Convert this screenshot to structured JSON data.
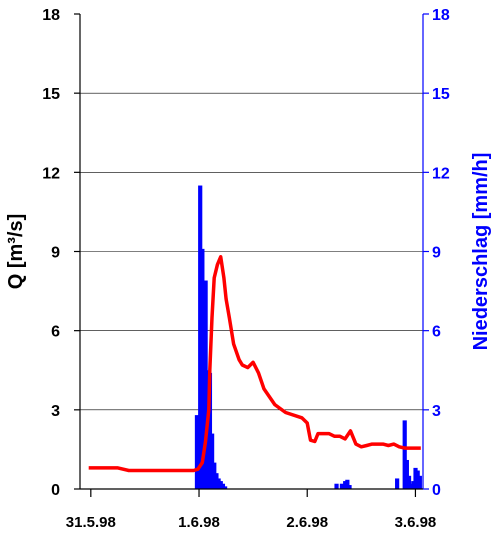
{
  "chart_data": {
    "type": "bar+line",
    "ylabel_left": "Q [m³/s]",
    "ylabel_right": "Niederschlag [mm/h]",
    "ylim_left": [
      0,
      18
    ],
    "ylim_right": [
      0,
      18
    ],
    "y_ticks": [
      "0",
      "3",
      "6",
      "9",
      "12",
      "15",
      "18"
    ],
    "x_ticks": [
      "31.5.98",
      "1.6.98",
      "2.6.98",
      "3.6.98"
    ],
    "xlim_days": [
      -0.1,
      3.07
    ],
    "grid": "horizontal",
    "colors": {
      "discharge": "#ff0000",
      "precipitation": "#0000ff",
      "axis_left": "#000000",
      "axis_right": "#0000ff"
    },
    "discharge": {
      "x": [
        -0.02,
        0.25,
        0.35,
        0.6,
        0.95,
        0.99,
        1.03,
        1.06,
        1.09,
        1.1,
        1.12,
        1.14,
        1.17,
        1.2,
        1.23,
        1.25,
        1.28,
        1.32,
        1.37,
        1.4,
        1.45,
        1.5,
        1.55,
        1.6,
        1.7,
        1.8,
        1.95,
        2.0,
        2.03,
        2.07,
        2.1,
        2.15,
        2.2,
        2.25,
        2.3,
        2.35,
        2.4,
        2.45,
        2.5,
        2.55,
        2.6,
        2.65,
        2.7,
        2.75,
        2.8,
        2.85,
        2.9,
        2.95,
        3.0,
        3.05
      ],
      "y": [
        0.8,
        0.8,
        0.7,
        0.7,
        0.7,
        0.75,
        1.0,
        1.8,
        3.0,
        4.5,
        6.5,
        8.0,
        8.5,
        8.8,
        8.0,
        7.2,
        6.5,
        5.5,
        4.9,
        4.7,
        4.6,
        4.8,
        4.4,
        3.8,
        3.2,
        2.9,
        2.7,
        2.5,
        1.85,
        1.8,
        2.1,
        2.1,
        2.1,
        2.0,
        2.0,
        1.9,
        2.2,
        1.7,
        1.6,
        1.65,
        1.7,
        1.7,
        1.7,
        1.65,
        1.7,
        1.6,
        1.55,
        1.55,
        1.55,
        1.55
      ]
    },
    "precipitation": {
      "x": [
        0.98,
        1.01,
        1.03,
        1.06,
        1.08,
        1.1,
        1.12,
        1.14,
        1.16,
        1.18,
        1.2,
        1.22,
        1.24,
        2.27,
        2.32,
        2.35,
        2.37,
        2.39,
        2.83,
        2.9,
        2.92,
        2.94,
        2.96,
        2.98,
        3.0,
        3.02,
        3.04
      ],
      "y": [
        2.8,
        11.5,
        9.1,
        7.9,
        4.5,
        4.4,
        2.1,
        1.0,
        0.6,
        0.4,
        0.3,
        0.2,
        0.1,
        0.2,
        0.2,
        0.3,
        0.35,
        0.15,
        0.4,
        2.6,
        1.1,
        0.5,
        0.2,
        0.3,
        0.8,
        0.7,
        0.5
      ]
    }
  }
}
